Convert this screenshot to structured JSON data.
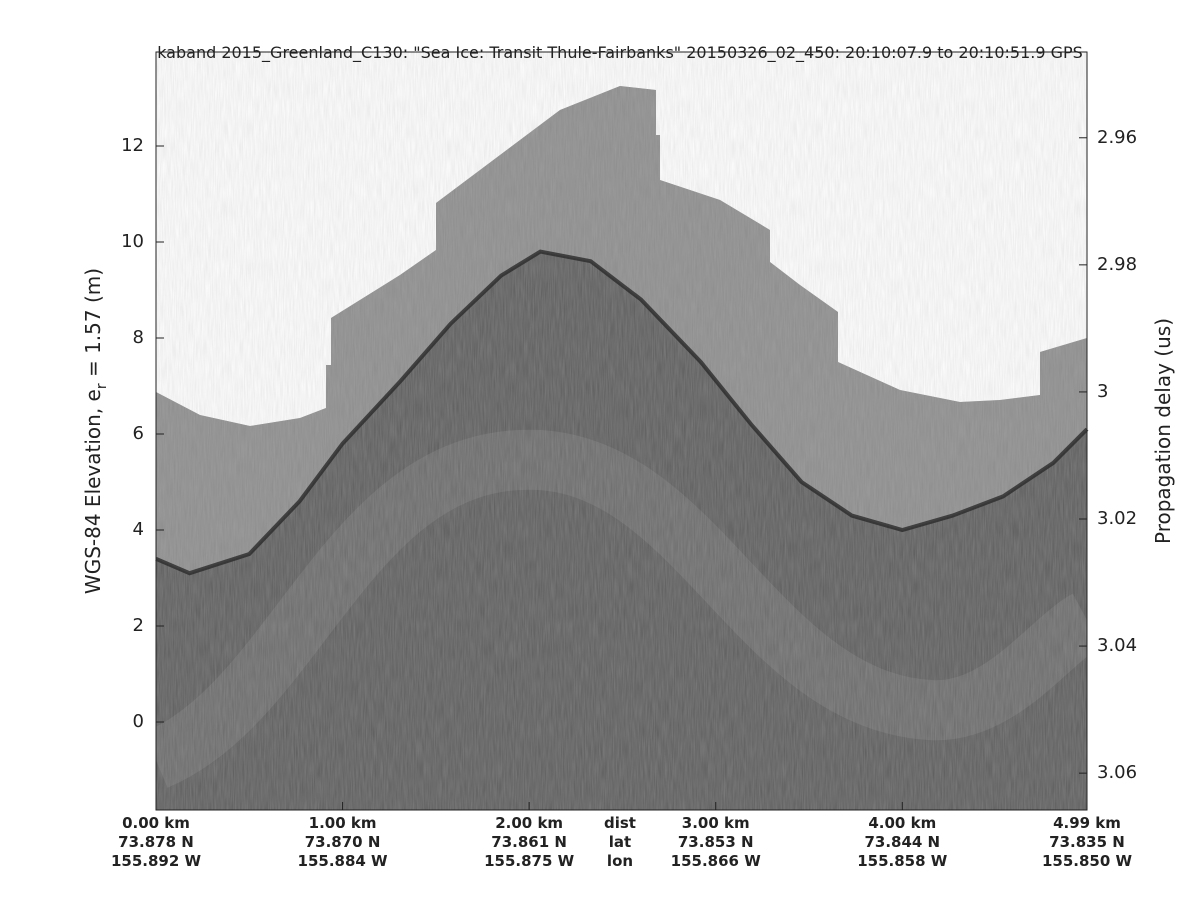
{
  "chart_data": {
    "type": "echogram",
    "title": "kaband 2015_Greenland_C130: \"Sea Ice: Transit Thule-Fairbanks\"  20150326_02_450: 20:10:07.9 to 20:10:51.9 GPS",
    "ylabel": {
      "main": "WGS-84 Elevation, e",
      "sub": "r",
      "rest": " = 1.57 (m)"
    },
    "y2label": "Propagation delay (us)",
    "xlim": [
      0,
      4.99
    ],
    "ylim": [
      -1.833,
      13.958
    ],
    "y2lim": [
      3.0658,
      2.9465
    ],
    "yticks": [
      0,
      2,
      4,
      6,
      8,
      10,
      12
    ],
    "y2ticks": [
      2.96,
      2.98,
      3,
      3.02,
      3.04,
      3.06
    ],
    "xticks": [
      {
        "value": 0,
        "label": "0.00 km"
      },
      {
        "value": 1,
        "label": "1.00 km"
      },
      {
        "value": 2,
        "label": "2.00 km"
      },
      {
        "value": 3,
        "label": "3.00 km"
      },
      {
        "value": 4,
        "label": "4.00 km"
      },
      {
        "value": 4.99,
        "label": "4.99 km"
      }
    ],
    "lat_labels": [
      "73.878 N",
      "73.870 N",
      "73.861 N",
      "73.853 N",
      "73.844 N",
      "73.835 N"
    ],
    "lon_labels": [
      "155.892 W",
      "155.884 W",
      "155.875 W",
      "155.866 W",
      "155.858 W",
      "155.850 W"
    ],
    "row_labels": [
      "dist",
      "lat",
      "lon"
    ],
    "x": [
      0,
      0.18,
      0.5,
      0.77,
      1.0,
      1.31,
      1.58,
      1.85,
      2.06,
      2.33,
      2.6,
      2.92,
      3.19,
      3.46,
      3.73,
      4.0,
      4.27,
      4.54,
      4.81,
      4.99
    ],
    "values": [
      3.4,
      3.1,
      3.5,
      4.6,
      5.8,
      7.1,
      8.3,
      9.3,
      9.8,
      9.6,
      8.8,
      7.5,
      6.2,
      5.0,
      4.3,
      4.0,
      4.3,
      4.7,
      5.4,
      6.1
    ],
    "color": "#2a2a2a"
  }
}
